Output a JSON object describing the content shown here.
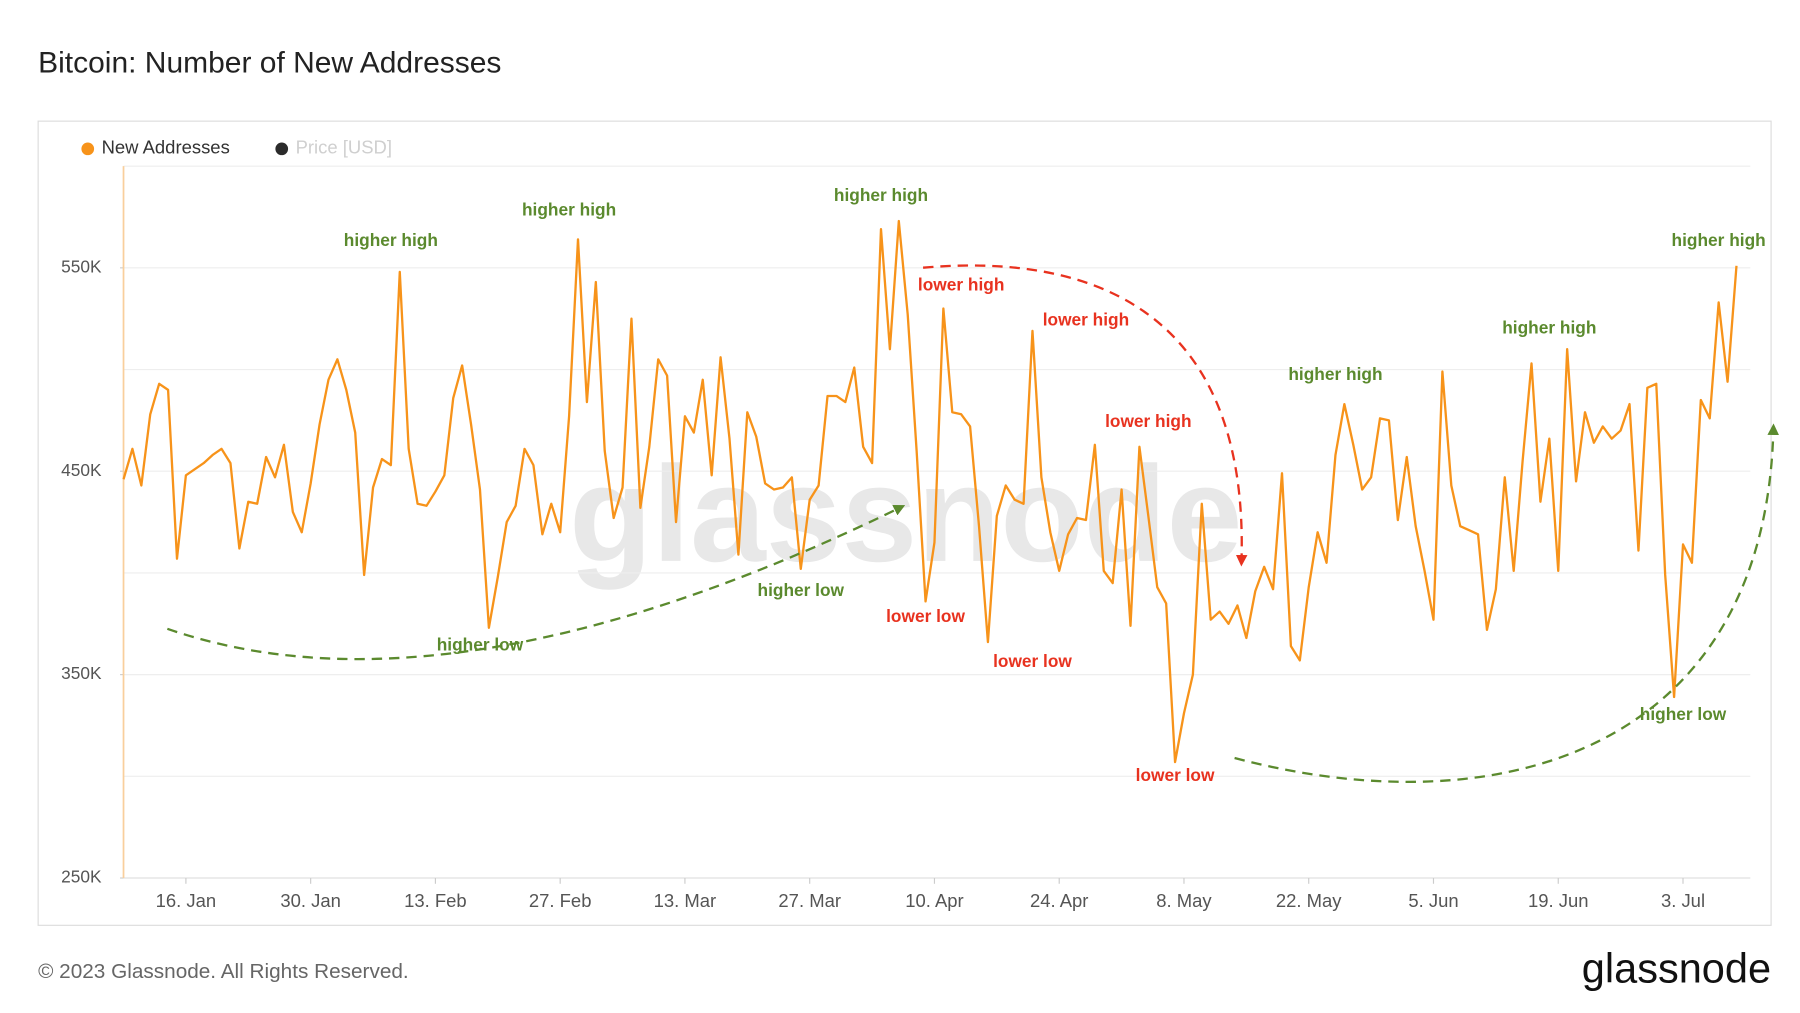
{
  "chart_data": {
    "type": "line",
    "title": "Bitcoin: Number of New Addresses",
    "footer": "© 2023 Glassnode. All Rights Reserved.",
    "logo": "glassnode",
    "watermark": "glassnode",
    "x": [
      "01-09",
      "01-10",
      "01-11",
      "01-12",
      "01-13",
      "01-14",
      "01-15",
      "01-16",
      "01-17",
      "01-18",
      "01-19",
      "01-20",
      "01-21",
      "01-22",
      "01-23",
      "01-24",
      "01-25",
      "01-26",
      "01-27",
      "01-28",
      "01-29",
      "01-30",
      "01-31",
      "02-01",
      "02-02",
      "02-03",
      "02-04",
      "02-05",
      "02-06",
      "02-07",
      "02-08",
      "02-09",
      "02-10",
      "02-11",
      "02-12",
      "02-13",
      "02-14",
      "02-15",
      "02-16",
      "02-17",
      "02-18",
      "02-19",
      "02-20",
      "02-21",
      "02-22",
      "02-23",
      "02-24",
      "02-25",
      "02-26",
      "02-27",
      "02-28",
      "03-01",
      "03-02",
      "03-03",
      "03-04",
      "03-05",
      "03-06",
      "03-07",
      "03-08",
      "03-09",
      "03-10",
      "03-11",
      "03-12",
      "03-13",
      "03-14",
      "03-15",
      "03-16",
      "03-17",
      "03-18",
      "03-19",
      "03-20",
      "03-21",
      "03-22",
      "03-23",
      "03-24",
      "03-25",
      "03-26",
      "03-27",
      "03-28",
      "03-29",
      "03-30",
      "03-31",
      "04-01",
      "04-02",
      "04-03",
      "04-04",
      "04-05",
      "04-06",
      "04-07",
      "04-08",
      "04-09",
      "04-10",
      "04-11",
      "04-12",
      "04-13",
      "04-14",
      "04-15",
      "04-16",
      "04-17",
      "04-18",
      "04-19",
      "04-20",
      "04-21",
      "04-22",
      "04-23",
      "04-24",
      "04-25",
      "04-26",
      "04-27",
      "04-28",
      "04-29",
      "04-30",
      "05-01",
      "05-02",
      "05-03",
      "05-04",
      "05-05",
      "05-06",
      "05-07",
      "05-08",
      "05-09",
      "05-10",
      "05-11",
      "05-12",
      "05-13",
      "05-14",
      "05-15",
      "05-16",
      "05-17",
      "05-18",
      "05-19",
      "05-20",
      "05-21",
      "05-22",
      "05-23",
      "05-24",
      "05-25",
      "05-26",
      "05-27",
      "05-28",
      "05-29",
      "05-30",
      "05-31",
      "06-01",
      "06-02",
      "06-03",
      "06-04",
      "06-05",
      "06-06",
      "06-07",
      "06-08",
      "06-09",
      "06-10",
      "06-11",
      "06-12",
      "06-13",
      "06-14",
      "06-15",
      "06-16",
      "06-17",
      "06-18",
      "06-19",
      "06-20",
      "06-21",
      "06-22",
      "06-23",
      "06-24",
      "06-25",
      "06-26",
      "06-27",
      "06-28",
      "06-29",
      "06-30",
      "07-01",
      "07-02",
      "07-03",
      "07-04",
      "07-05",
      "07-06",
      "07-07",
      "07-08",
      "07-09"
    ],
    "series": [
      {
        "name": "New Addresses",
        "color": "#f7931a",
        "values": [
          446000,
          461000,
          443000,
          478000,
          493000,
          490000,
          407000,
          448000,
          451000,
          454000,
          458000,
          461000,
          454000,
          412000,
          435000,
          434000,
          457000,
          447000,
          463000,
          430000,
          420000,
          444000,
          473000,
          495000,
          505000,
          490000,
          469000,
          399000,
          442000,
          456000,
          453000,
          548000,
          461000,
          434000,
          433000,
          440000,
          448000,
          486000,
          502000,
          473000,
          441000,
          373000,
          398000,
          425000,
          433000,
          461000,
          453000,
          419000,
          434000,
          420000,
          477000,
          564000,
          484000,
          543000,
          460000,
          427000,
          442000,
          525000,
          432000,
          462000,
          505000,
          497000,
          425000,
          477000,
          469000,
          495000,
          448000,
          506000,
          466000,
          409000,
          479000,
          467000,
          444000,
          441000,
          442000,
          447000,
          402000,
          436000,
          443000,
          487000,
          487000,
          484000,
          501000,
          462000,
          454000,
          569000,
          510000,
          573000,
          527000,
          460000,
          386000,
          415000,
          530000,
          479000,
          478000,
          472000,
          423000,
          366000,
          428000,
          443000,
          436000,
          434000,
          519000,
          447000,
          420000,
          401000,
          419000,
          427000,
          426000,
          463000,
          401000,
          395000,
          441000,
          374000,
          462000,
          428000,
          393000,
          385000,
          307000,
          331000,
          350000,
          434000,
          377000,
          381000,
          375000,
          384000,
          368000,
          391000,
          403000,
          392000,
          449000,
          364000,
          357000,
          393000,
          420000,
          405000,
          458000,
          483000,
          463000,
          441000,
          447000,
          476000,
          475000,
          426000,
          457000,
          423000,
          401000,
          377000,
          499000,
          443000,
          423000,
          421000,
          419000,
          372000,
          392000,
          447000,
          401000,
          455000,
          503000,
          435000,
          466000,
          401000,
          510000,
          445000,
          479000,
          464000,
          472000,
          466000,
          470000,
          483000,
          411000,
          491000,
          493000,
          399000,
          339000,
          414000,
          405000,
          485000,
          476000,
          533000,
          494000,
          551000
        ]
      },
      {
        "name": "Price [USD]",
        "color": "#2b2b2b",
        "hidden": true
      }
    ],
    "ylim": [
      250000,
      600000
    ],
    "yticks": [
      {
        "value": 250000,
        "label": "250K"
      },
      {
        "value": 350000,
        "label": "350K"
      },
      {
        "value": 450000,
        "label": "450K"
      },
      {
        "value": 550000,
        "label": "550K"
      }
    ],
    "ygrid": [
      300000,
      350000,
      400000,
      450000,
      500000,
      550000,
      600000
    ],
    "xticks": [
      {
        "value": "01-16",
        "label": "16. Jan"
      },
      {
        "value": "01-30",
        "label": "30. Jan"
      },
      {
        "value": "02-13",
        "label": "13. Feb"
      },
      {
        "value": "02-27",
        "label": "27. Feb"
      },
      {
        "value": "03-13",
        "label": "13. Mar"
      },
      {
        "value": "03-27",
        "label": "27. Mar"
      },
      {
        "value": "04-10",
        "label": "10. Apr"
      },
      {
        "value": "04-24",
        "label": "24. Apr"
      },
      {
        "value": "05-08",
        "label": "8. May"
      },
      {
        "value": "05-22",
        "label": "22. May"
      },
      {
        "value": "06-05",
        "label": "5. Jun"
      },
      {
        "value": "06-19",
        "label": "19. Jun"
      },
      {
        "value": "07-03",
        "label": "3. Jul"
      }
    ],
    "grid": true,
    "legend": "top-left",
    "annotations": [
      {
        "text": "higher high",
        "x": "02-08",
        "y": 563000,
        "color": "#5b8a2e"
      },
      {
        "text": "higher high",
        "x": "02-28",
        "y": 578000,
        "color": "#5b8a2e"
      },
      {
        "text": "higher high",
        "x": "04-04",
        "y": 585000,
        "color": "#5b8a2e"
      },
      {
        "text": "lower high",
        "x": "04-13",
        "y": 541000,
        "color": "#e8321f"
      },
      {
        "text": "lower high",
        "x": "04-27",
        "y": 524000,
        "color": "#e8321f"
      },
      {
        "text": "lower high",
        "x": "05-04",
        "y": 474000,
        "color": "#e8321f"
      },
      {
        "text": "higher high",
        "x": "05-25",
        "y": 497000,
        "color": "#5b8a2e"
      },
      {
        "text": "higher high",
        "x": "06-18",
        "y": 520000,
        "color": "#5b8a2e"
      },
      {
        "text": "higher high",
        "x": "07-07",
        "y": 563000,
        "color": "#5b8a2e"
      },
      {
        "text": "higher low",
        "x": "02-18",
        "y": 364000,
        "color": "#5b8a2e"
      },
      {
        "text": "higher low",
        "x": "03-26",
        "y": 391000,
        "color": "#5b8a2e"
      },
      {
        "text": "lower low",
        "x": "04-09",
        "y": 378000,
        "color": "#e8321f"
      },
      {
        "text": "lower low",
        "x": "04-21",
        "y": 356000,
        "color": "#e8321f"
      },
      {
        "text": "lower low",
        "x": "05-07",
        "y": 300000,
        "color": "#e8321f"
      },
      {
        "text": "higher low",
        "x": "07-03",
        "y": 330000,
        "color": "#5b8a2e"
      }
    ]
  }
}
